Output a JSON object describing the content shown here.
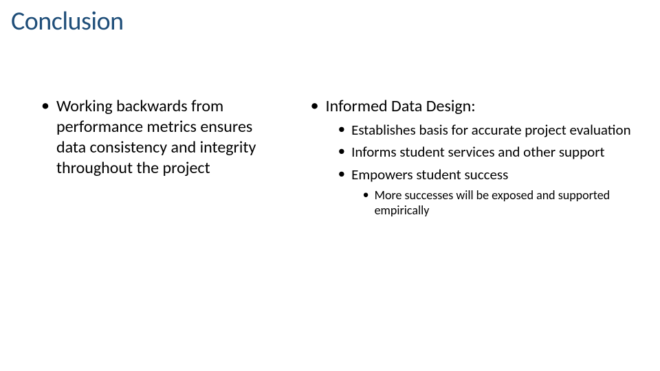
{
  "title": "Conclusion",
  "title_color": "#1f4e79",
  "title_fontsize": 38,
  "background_color": "#ffffff",
  "text_color": "#000000",
  "left_column": {
    "points": [
      "Working backwards from performance metrics ensures data consistency and integrity throughout the project"
    ]
  },
  "right_column": {
    "heading": "Informed Data Design:",
    "subpoints": [
      "Establishes basis for accurate project evaluation",
      "Informs student services and other support",
      "Empowers student success"
    ],
    "subsubpoints": [
      "More successes will be exposed and supported empirically"
    ]
  },
  "font_sizes": {
    "level_1": 24,
    "level_2": 21,
    "level_3": 18
  }
}
